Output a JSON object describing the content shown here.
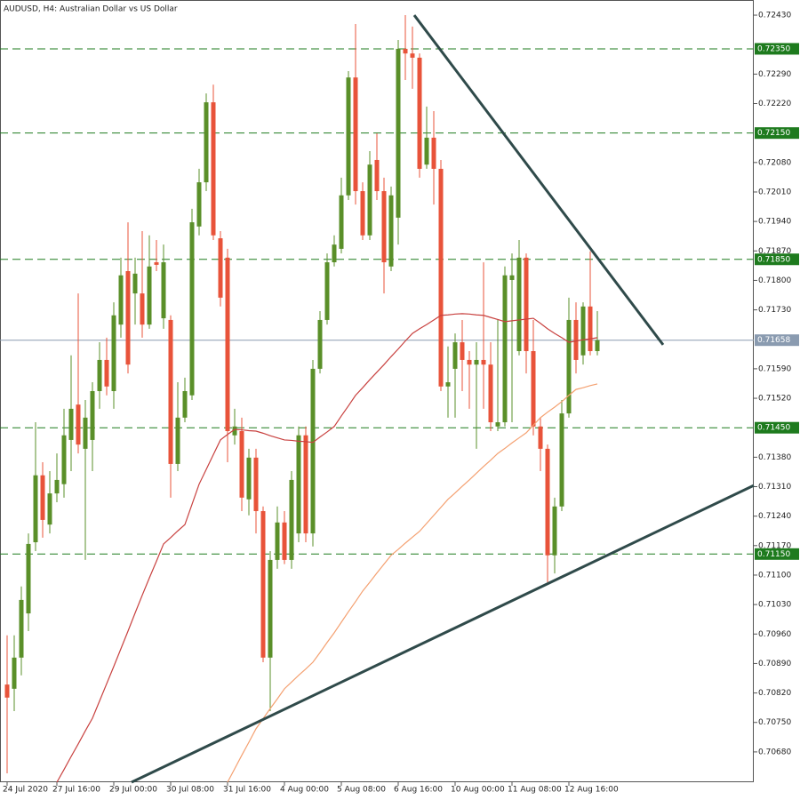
{
  "chart_data": {
    "type": "candlestick",
    "title": "AUDUSD, H4:  Australian Dollar vs US Dollar",
    "up_color": "#5a8f29",
    "down_color": "#e8533a",
    "categories": [
      "24 Jul 2020",
      null,
      null,
      null,
      null,
      null,
      null,
      "27 Jul 16:00",
      null,
      null,
      null,
      null,
      null,
      null,
      null,
      "29 Jul 00:00",
      null,
      null,
      null,
      null,
      null,
      null,
      null,
      "30 Jul 08:00",
      null,
      null,
      null,
      null,
      null,
      null,
      null,
      "31 Jul 16:00",
      null,
      null,
      null,
      null,
      null,
      null,
      null,
      "4 Aug 00:00",
      null,
      null,
      null,
      null,
      null,
      null,
      null,
      "5 Aug 08:00",
      null,
      null,
      null,
      null,
      null,
      null,
      null,
      "6 Aug 16:00",
      null,
      null,
      null,
      null,
      null,
      null,
      null,
      "10 Aug 00:00",
      null,
      null,
      null,
      null,
      null,
      null,
      null,
      "11 Aug 08:00",
      null,
      null,
      null,
      null,
      null,
      null,
      null,
      "12 Aug 16:00",
      null,
      null,
      null,
      null
    ],
    "open": [
      0.7084,
      0.7083,
      0.70904,
      0.71009,
      0.71178,
      0.71337,
      0.7122,
      0.71294,
      0.71316,
      0.71421,
      0.71505,
      0.714,
      0.71421,
      0.71537,
      0.71611,
      0.71537,
      0.71695,
      0.71822,
      0.71769,
      0.71769,
      0.71695,
      0.71843,
      0.7171,
      0.71706,
      0.71364,
      0.71474,
      0.71527,
      0.71928,
      0.72033,
      0.72223,
      0.719,
      0.71854,
      0.71432,
      0.71442,
      0.7128,
      0.71379,
      0.71252,
      0.70904,
      0.71136,
      0.71225,
      0.71136,
      0.71199,
      0.71432,
      0.71199,
      0.7159,
      0.71706,
      0.71843,
      0.71875,
      0.72002,
      0.72282,
      0.72012,
      0.71907,
      0.72086,
      0.72012,
      0.71833,
      0.71949,
      0.7235,
      0.72339,
      0.72329,
      0.72075,
      0.72139,
      0.72065,
      0.71548,
      0.7159,
      0.71653,
      0.71611,
      0.716,
      0.71611,
      0.716,
      0.71453,
      0.71463,
      0.71801,
      0.71632,
      0.71854,
      0.71632,
      0.71453,
      0.714,
      0.71147,
      0.71263,
      0.71484,
      0.71706,
      0.71622,
      0.71738,
      0.71632
    ],
    "high": [
      0.70957,
      0.70957,
      0.71073,
      0.71199,
      0.71463,
      0.71368,
      0.71347,
      0.71389,
      0.71495,
      0.71622,
      0.71769,
      0.71516,
      0.71558,
      0.71653,
      0.71664,
      0.71748,
      0.71854,
      0.71938,
      0.71854,
      0.71917,
      0.71907,
      0.71896,
      0.71885,
      0.71717,
      0.71558,
      0.71569,
      0.7197,
      0.72065,
      0.72244,
      0.72265,
      0.71917,
      0.71875,
      0.71495,
      0.71474,
      0.714,
      0.714,
      0.71263,
      0.71157,
      0.71263,
      0.71252,
      0.71347,
      0.71453,
      0.71453,
      0.71611,
      0.71727,
      0.71864,
      0.71907,
      0.72044,
      0.72297,
      0.72409,
      0.72033,
      0.72107,
      0.72149,
      0.72044,
      0.72023,
      0.72371,
      0.7243,
      0.72403,
      0.72339,
      0.72213,
      0.72202,
      0.72086,
      0.71643,
      0.71674,
      0.71706,
      0.71632,
      0.71653,
      0.71843,
      0.71653,
      0.71706,
      0.71833,
      0.71864,
      0.71896,
      0.71864,
      0.71706,
      0.71474,
      0.7141,
      0.71284,
      0.71516,
      0.71759,
      0.71748,
      0.71748,
      0.71869,
      0.71727
    ],
    "low": [
      0.70629,
      0.70777,
      0.70862,
      0.70967,
      0.71157,
      0.71189,
      0.71199,
      0.71273,
      0.71284,
      0.71347,
      0.71389,
      0.71136,
      0.71347,
      0.71495,
      0.71527,
      0.71495,
      0.71664,
      0.71579,
      0.71695,
      0.71664,
      0.71685,
      0.71822,
      0.71685,
      0.71284,
      0.71347,
      0.71463,
      0.71516,
      0.71907,
      0.72012,
      0.71896,
      0.71738,
      0.71368,
      0.7141,
      0.71252,
      0.71242,
      0.71199,
      0.70893,
      0.70777,
      0.71115,
      0.71126,
      0.71115,
      0.71178,
      0.71178,
      0.71168,
      0.71579,
      0.71695,
      0.71833,
      0.71864,
      0.71991,
      0.7198,
      0.71896,
      0.71896,
      0.71991,
      0.71769,
      0.71822,
      0.71885,
      0.72276,
      0.72255,
      0.72044,
      0.72065,
      0.7198,
      0.71537,
      0.71474,
      0.71474,
      0.71537,
      0.71495,
      0.714,
      0.71495,
      0.71442,
      0.71442,
      0.71453,
      0.71463,
      0.71622,
      0.71579,
      0.71432,
      0.71347,
      0.71083,
      0.71104,
      0.71252,
      0.71474,
      0.71579,
      0.716,
      0.71622,
      0.71622
    ],
    "close": [
      0.70809,
      0.70904,
      0.71041,
      0.71174,
      0.71337,
      0.71231,
      0.71294,
      0.71326,
      0.71432,
      0.71495,
      0.7141,
      0.71474,
      0.71537,
      0.71611,
      0.71548,
      0.71717,
      0.71812,
      0.716,
      0.71816,
      0.71695,
      0.71833,
      0.71837,
      0.71843,
      0.71364,
      0.71474,
      0.71537,
      0.71938,
      0.72033,
      0.72223,
      0.71907,
      0.71759,
      0.71442,
      0.71453,
      0.71284,
      0.71379,
      0.71252,
      0.70904,
      0.71136,
      0.71225,
      0.71136,
      0.71326,
      0.71432,
      0.71199,
      0.7159,
      0.71706,
      0.71843,
      0.71885,
      0.72002,
      0.72282,
      0.72012,
      0.71907,
      0.72075,
      0.72012,
      0.71843,
      0.72002,
      0.7235,
      0.72339,
      0.72329,
      0.72065,
      0.72139,
      0.72065,
      0.71548,
      0.71558,
      0.71653,
      0.71611,
      0.716,
      0.71611,
      0.716,
      0.71463,
      0.71463,
      0.71812,
      0.71812,
      0.71854,
      0.71632,
      0.71453,
      0.714,
      0.71147,
      0.71263,
      0.71484,
      0.71706,
      0.71611,
      0.71738,
      0.71632,
      0.71658
    ],
    "moving_averages": [
      {
        "color": "#c8413f",
        "values": [
          null,
          null,
          null,
          null,
          null,
          null,
          null,
          0.70608,
          0.70638,
          0.70669,
          0.70699,
          0.7073,
          0.7076,
          0.70801,
          0.70842,
          0.70883,
          0.70925,
          0.70967,
          0.7101,
          0.71052,
          0.71093,
          0.71133,
          0.71174,
          0.71189,
          0.71205,
          0.7122,
          0.71268,
          0.71316,
          0.71351,
          0.71386,
          0.71421,
          0.71434,
          0.71446,
          0.71445,
          0.71443,
          0.71442,
          0.71437,
          0.71431,
          0.71426,
          0.71421,
          0.7142,
          0.71418,
          0.71417,
          0.71415,
          0.71428,
          0.7144,
          0.71453,
          0.71478,
          0.71502,
          0.71527,
          0.71545,
          0.71564,
          0.71582,
          0.716,
          0.71619,
          0.71637,
          0.71656,
          0.71674,
          0.71685,
          0.71695,
          0.71706,
          0.71717,
          0.71718,
          0.7172,
          0.71721,
          0.7172,
          0.71718,
          0.71717,
          0.71712,
          0.71707,
          0.71702,
          0.71704,
          0.71706,
          0.71708,
          0.7171,
          0.71698,
          0.71685,
          0.71674,
          0.71664,
          0.71653,
          0.71656,
          0.71659,
          0.71661,
          0.71664
        ]
      },
      {
        "color": "#f4a070",
        "values": [
          null,
          null,
          null,
          null,
          null,
          null,
          null,
          null,
          null,
          null,
          null,
          null,
          null,
          null,
          null,
          null,
          null,
          null,
          null,
          null,
          null,
          null,
          null,
          null,
          null,
          null,
          null,
          null,
          null,
          null,
          null,
          0.70608,
          0.7064,
          0.70672,
          0.70703,
          0.70735,
          0.70759,
          0.70783,
          0.70806,
          0.7083,
          0.70846,
          0.70862,
          0.70877,
          0.70893,
          0.70916,
          0.7094,
          0.70963,
          0.70988,
          0.71013,
          0.71037,
          0.71062,
          0.71083,
          0.71105,
          0.71126,
          0.71147,
          0.71161,
          0.71176,
          0.7119,
          0.71204,
          0.71223,
          0.71242,
          0.71261,
          0.7128,
          0.71295,
          0.71311,
          0.71326,
          0.71342,
          0.71358,
          0.71373,
          0.71389,
          0.71401,
          0.71414,
          0.71426,
          0.71438,
          0.71456,
          0.71474,
          0.71487,
          0.71499,
          0.71512,
          0.71527,
          0.71541,
          0.71545,
          0.7155,
          0.71554
        ]
      }
    ],
    "trendlines": [
      {
        "color": "#2f4a4a",
        "x": [
          57.25,
          92.25
        ],
        "y": [
          0.7243,
          0.71647
        ]
      },
      {
        "color": "#2f4a4a",
        "x": [
          17.5,
          105
        ],
        "y": [
          0.70608,
          0.71313
        ]
      }
    ],
    "levels": [
      {
        "value": 0.7235,
        "label": "0.72350"
      },
      {
        "value": 0.7215,
        "label": "0.72150"
      },
      {
        "value": 0.7185,
        "label": "0.71850"
      },
      {
        "value": 0.7145,
        "label": "0.71450"
      },
      {
        "value": 0.7115,
        "label": "0.71150"
      }
    ],
    "level_color": "#1e7b1e",
    "current_price": 0.71658,
    "ylim": [
      0.70608,
      0.72466
    ],
    "yticks": [
      {
        "value": 0.7243,
        "label": "0.72430"
      },
      {
        "value": 0.7229,
        "label": "0.72290"
      },
      {
        "value": 0.7222,
        "label": "0.72220"
      },
      {
        "value": 0.7208,
        "label": "0.72080"
      },
      {
        "value": 0.7201,
        "label": "0.72010"
      },
      {
        "value": 0.7194,
        "label": "0.71940"
      },
      {
        "value": 0.7187,
        "label": "0.71870"
      },
      {
        "value": 0.718,
        "label": "0.71800"
      },
      {
        "value": 0.7173,
        "label": "0.71730"
      },
      {
        "value": 0.7159,
        "label": "0.71590"
      },
      {
        "value": 0.7152,
        "label": "0.71520"
      },
      {
        "value": 0.7138,
        "label": "0.71380"
      },
      {
        "value": 0.7131,
        "label": "0.71310"
      },
      {
        "value": 0.7124,
        "label": "0.71240"
      },
      {
        "value": 0.7117,
        "label": "0.71170"
      },
      {
        "value": 0.711,
        "label": "0.71100"
      },
      {
        "value": 0.7103,
        "label": "0.71030"
      },
      {
        "value": 0.7096,
        "label": "0.70960"
      },
      {
        "value": 0.7089,
        "label": "0.70890"
      },
      {
        "value": 0.7082,
        "label": "0.70820"
      },
      {
        "value": 0.7075,
        "label": "0.70750"
      },
      {
        "value": 0.7068,
        "label": "0.70680"
      }
    ]
  }
}
